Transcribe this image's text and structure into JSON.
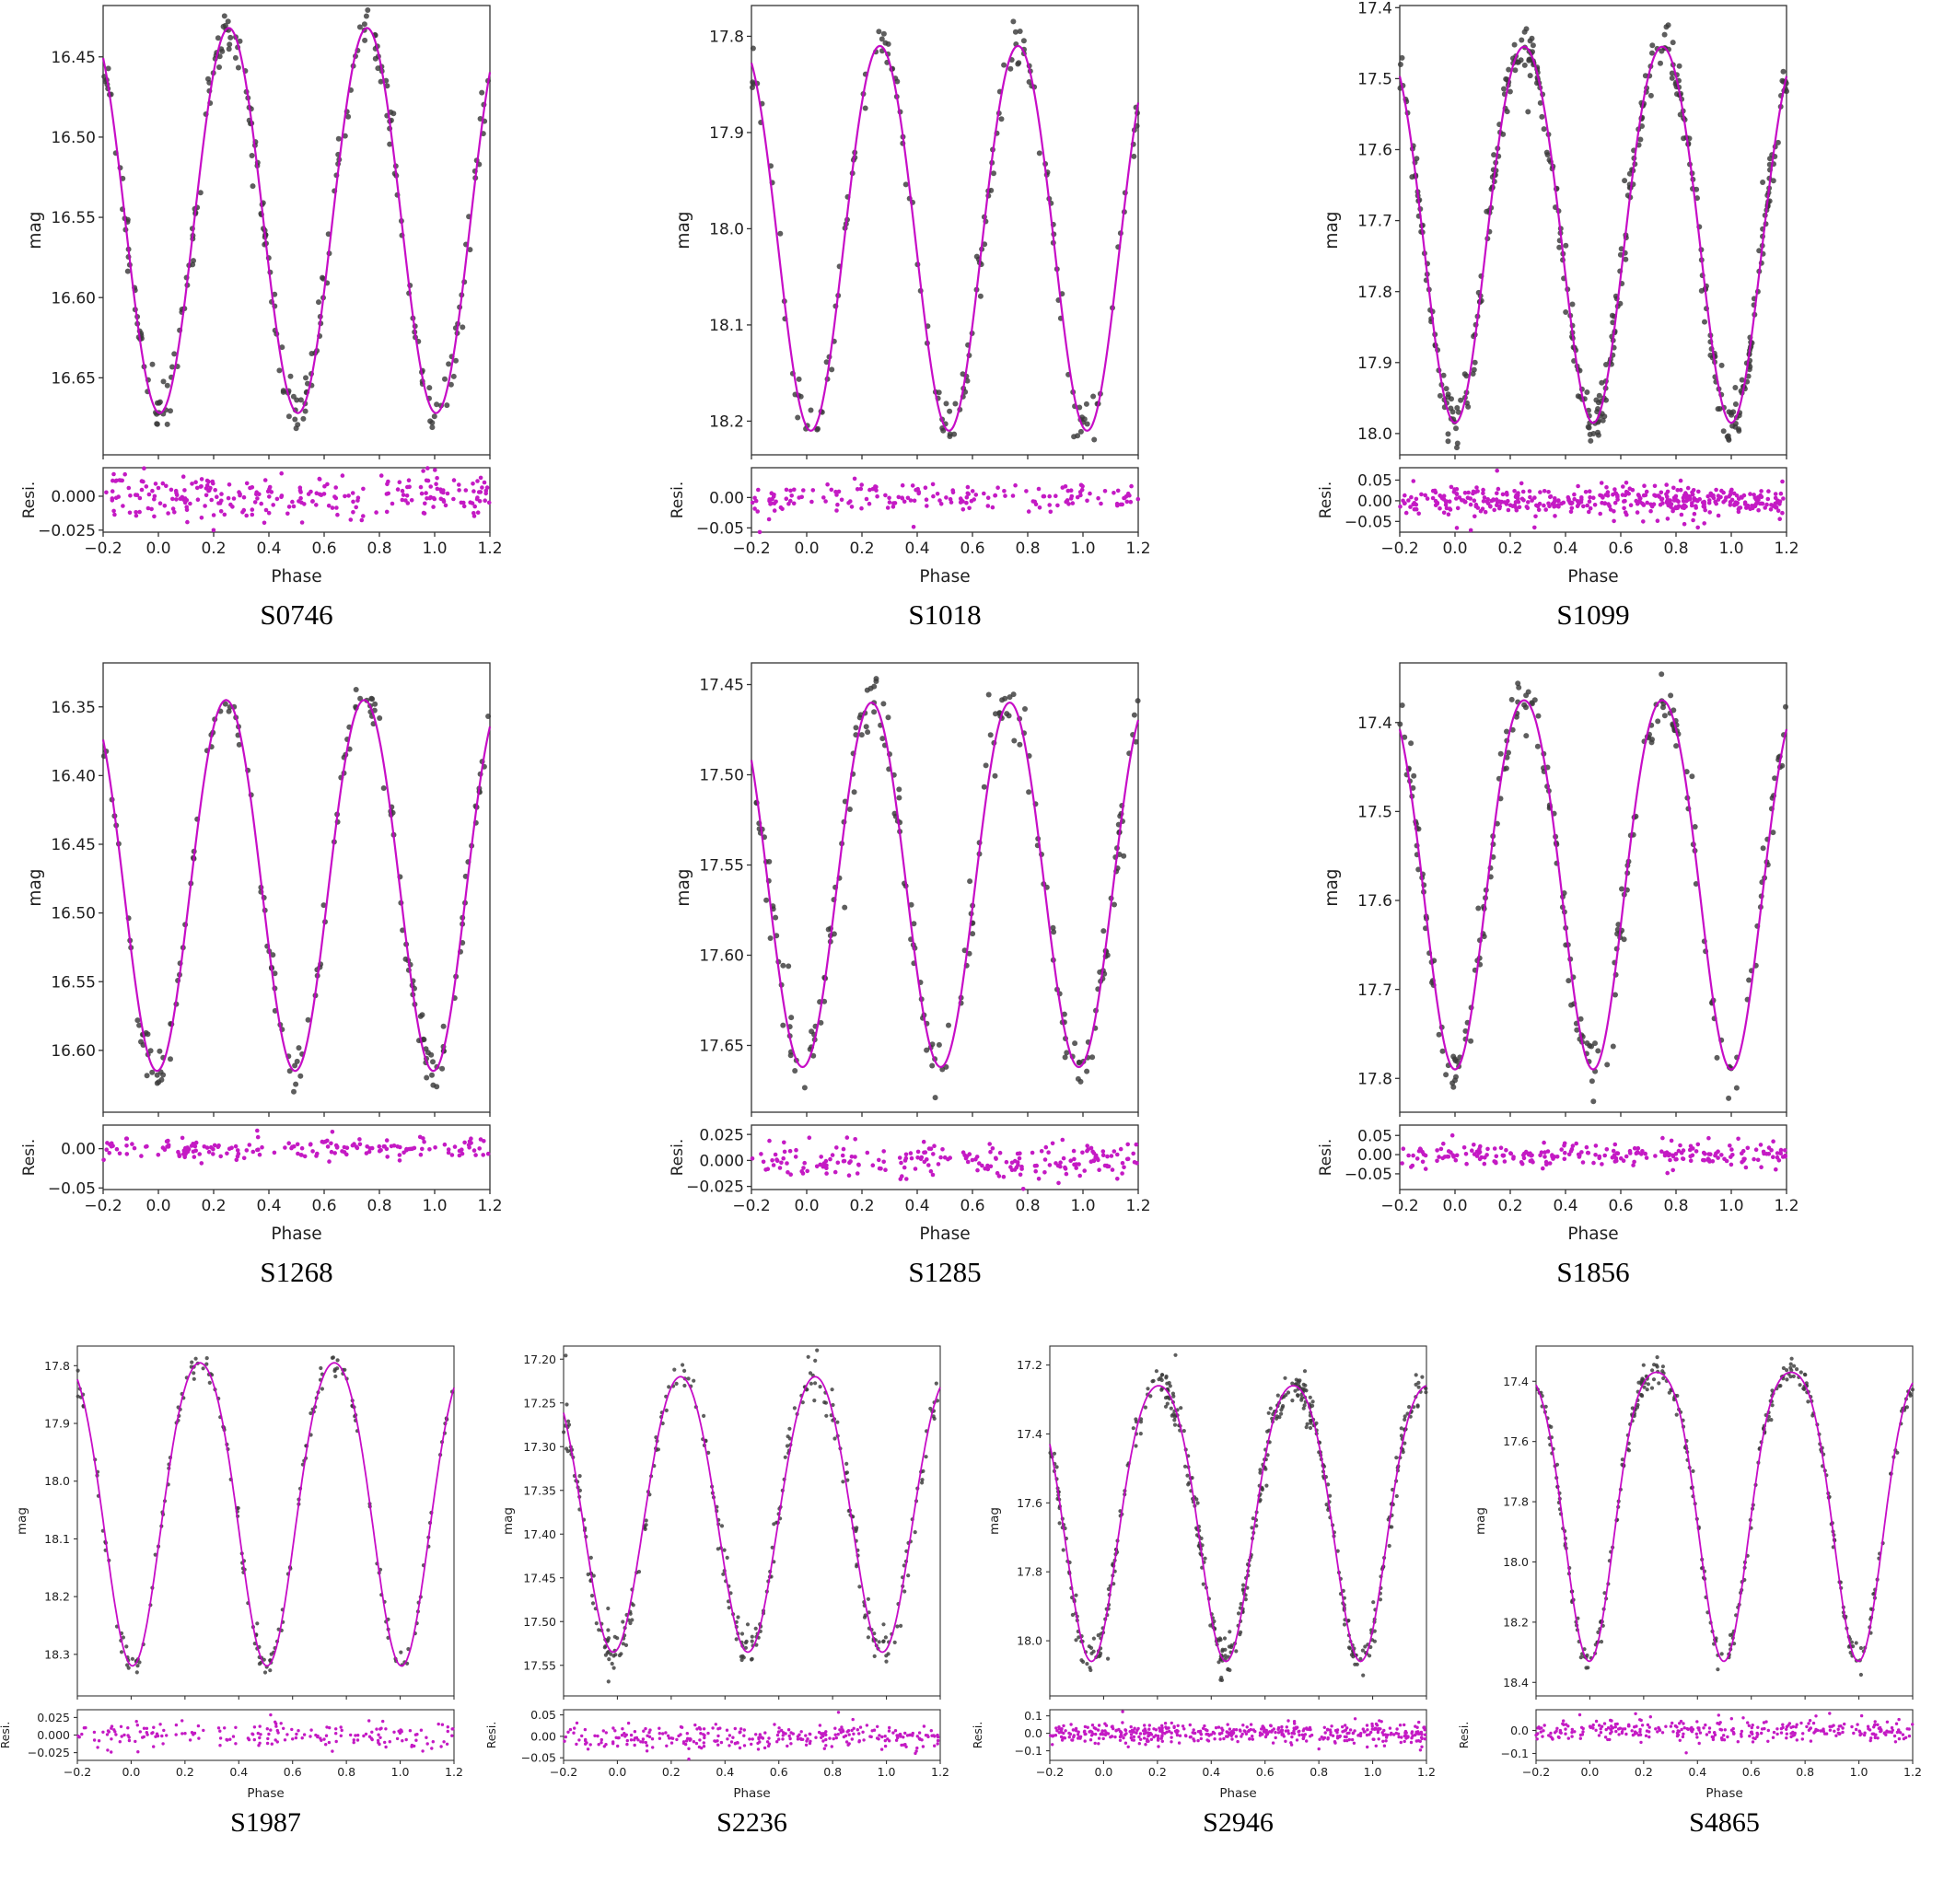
{
  "chart_data": {
    "type": "scatter",
    "description": "Grid of 10 phase-folded light curves of variable stars; each panel shows mag vs Phase with dark data points, a magenta sinusoidal fit, and a residual strip below.",
    "layout": {
      "rows": [
        [
          "S0746",
          "S1018",
          "S1099"
        ],
        [
          "S1268",
          "S1285",
          "S1856"
        ],
        [
          "S1987",
          "S2236",
          "S2946",
          "S4865"
        ]
      ],
      "grid": false,
      "legend": "none"
    },
    "shared": {
      "xlabel": "Phase",
      "ylabel_main": "mag",
      "ylabel_resid": "Resi.",
      "xlim": [
        -0.2,
        1.2
      ],
      "x_tick_values": [
        -0.2,
        0.0,
        0.2,
        0.4,
        0.6,
        0.8,
        1.0,
        1.2
      ],
      "x_tick_labels": [
        "−0.2",
        "0.0",
        "0.2",
        "0.4",
        "0.6",
        "0.8",
        "1.0",
        "1.2"
      ],
      "fit_color": "#c400c4",
      "resid_point_color": "#c41ac4",
      "point_color": "#3a3a3a",
      "axis_color": "#333333"
    },
    "panels": [
      {
        "id": "S0746",
        "y_tick_labels": [
          "16.45",
          "16.50",
          "16.55",
          "16.60",
          "16.65"
        ],
        "y_tick_values": [
          16.45,
          16.5,
          16.55,
          16.6,
          16.65
        ],
        "ylim": [
          16.418,
          16.698
        ],
        "fit": {
          "mag_brightest": 16.432,
          "mag_faintest": 16.672,
          "min_at_phase": 0.005,
          "period_in_phase": 0.5,
          "sharpness": 0.0
        },
        "points": {
          "n": 260,
          "noise_mag": 0.008,
          "seed": 11
        },
        "residual": {
          "tick_labels": [
            "0.000",
            "−0.025"
          ],
          "tick_values": [
            0.0,
            -0.025
          ],
          "ylim": [
            0.021,
            -0.0265
          ],
          "seed": 111
        }
      },
      {
        "id": "S1018",
        "y_tick_labels": [
          "17.8",
          "17.9",
          "18.0",
          "18.1",
          "18.2"
        ],
        "y_tick_values": [
          17.8,
          17.9,
          18.0,
          18.1,
          18.2
        ],
        "ylim": [
          17.768,
          18.235
        ],
        "fit": {
          "mag_brightest": 17.81,
          "mag_faintest": 18.21,
          "min_at_phase": 0.015,
          "period_in_phase": 0.5,
          "sharpness": 0.02
        },
        "points": {
          "n": 170,
          "noise_mag": 0.013,
          "seed": 22
        },
        "residual": {
          "tick_labels": [
            "0.00",
            "−0.05"
          ],
          "tick_values": [
            0.0,
            -0.05
          ],
          "ylim": [
            0.049,
            -0.057
          ],
          "seed": 222
        }
      },
      {
        "id": "S1099",
        "y_tick_labels": [
          "17.4",
          "17.5",
          "17.6",
          "17.7",
          "17.8",
          "17.9",
          "18.0"
        ],
        "y_tick_values": [
          17.4,
          17.5,
          17.6,
          17.7,
          17.8,
          17.9,
          18.0
        ],
        "ylim": [
          17.397,
          18.03
        ],
        "fit": {
          "mag_brightest": 17.455,
          "mag_faintest": 17.985,
          "min_at_phase": 0.0,
          "period_in_phase": 0.5,
          "sharpness": 0.05
        },
        "points": {
          "n": 430,
          "noise_mag": 0.018,
          "seed": 33
        },
        "residual": {
          "tick_labels": [
            "0.05",
            "0.00",
            "−0.05"
          ],
          "tick_values": [
            0.05,
            0.0,
            -0.05
          ],
          "ylim": [
            0.08,
            -0.076
          ],
          "seed": 333
        }
      },
      {
        "id": "S1268",
        "y_tick_labels": [
          "16.35",
          "16.40",
          "16.45",
          "16.50",
          "16.55",
          "16.60"
        ],
        "y_tick_values": [
          16.35,
          16.4,
          16.45,
          16.5,
          16.55,
          16.6
        ],
        "ylim": [
          16.318,
          16.645
        ],
        "fit": {
          "mag_brightest": 16.345,
          "mag_faintest": 16.615,
          "min_at_phase": -0.005,
          "period_in_phase": 0.5,
          "sharpness": 0.02
        },
        "points": {
          "n": 175,
          "noise_mag": 0.007,
          "seed": 44
        },
        "residual": {
          "tick_labels": [
            "0.00",
            "−0.05"
          ],
          "tick_values": [
            0.0,
            -0.05
          ],
          "ylim": [
            0.03,
            -0.052
          ],
          "seed": 444
        }
      },
      {
        "id": "S1285",
        "y_tick_labels": [
          "17.45",
          "17.50",
          "17.55",
          "17.60",
          "17.65"
        ],
        "y_tick_values": [
          17.45,
          17.5,
          17.55,
          17.6,
          17.65
        ],
        "ylim": [
          17.438,
          17.687
        ],
        "fit": {
          "mag_brightest": 17.46,
          "mag_faintest": 17.662,
          "min_at_phase": -0.015,
          "period_in_phase": 0.5,
          "sharpness": 0.0
        },
        "points": {
          "n": 210,
          "noise_mag": 0.009,
          "seed": 55
        },
        "residual": {
          "tick_labels": [
            "0.025",
            "0.000",
            "−0.025"
          ],
          "tick_values": [
            0.025,
            0.0,
            -0.025
          ],
          "ylim": [
            0.034,
            -0.028
          ],
          "seed": 555
        }
      },
      {
        "id": "S1856",
        "y_tick_labels": [
          "17.4",
          "17.5",
          "17.6",
          "17.7",
          "17.8"
        ],
        "y_tick_values": [
          17.4,
          17.5,
          17.6,
          17.7,
          17.8
        ],
        "ylim": [
          17.333,
          17.838
        ],
        "fit": {
          "mag_brightest": 17.375,
          "mag_faintest": 17.79,
          "min_at_phase": 0.0,
          "period_in_phase": 0.5,
          "sharpness": 0.05
        },
        "points": {
          "n": 235,
          "noise_mag": 0.016,
          "seed": 66
        },
        "residual": {
          "tick_labels": [
            "0.05",
            "0.00",
            "−0.05"
          ],
          "tick_values": [
            0.05,
            0.0,
            -0.05
          ],
          "ylim": [
            0.077,
            -0.091
          ],
          "seed": 666
        }
      },
      {
        "id": "S1987",
        "y_tick_labels": [
          "17.8",
          "17.9",
          "18.0",
          "18.1",
          "18.2",
          "18.3"
        ],
        "y_tick_values": [
          17.8,
          17.9,
          18.0,
          18.1,
          18.2,
          18.3
        ],
        "ylim": [
          17.766,
          18.372
        ],
        "fit": {
          "mag_brightest": 17.795,
          "mag_faintest": 18.32,
          "min_at_phase": 0.005,
          "period_in_phase": 0.5,
          "sharpness": 0.08
        },
        "points": {
          "n": 190,
          "noise_mag": 0.01,
          "seed": 77
        },
        "residual": {
          "tick_labels": [
            "0.025",
            "0.000",
            "−0.025"
          ],
          "tick_values": [
            0.025,
            0.0,
            -0.025
          ],
          "ylim": [
            0.036,
            -0.036
          ],
          "seed": 777
        }
      },
      {
        "id": "S2236",
        "y_tick_labels": [
          "17.20",
          "17.25",
          "17.30",
          "17.35",
          "17.40",
          "17.45",
          "17.50",
          "17.55"
        ],
        "y_tick_values": [
          17.2,
          17.25,
          17.3,
          17.35,
          17.4,
          17.45,
          17.5,
          17.55
        ],
        "ylim": [
          17.185,
          17.585
        ],
        "fit": {
          "mag_brightest": 17.22,
          "mag_faintest": 17.535,
          "min_at_phase": -0.015,
          "period_in_phase": 0.5,
          "sharpness": 0.05
        },
        "points": {
          "n": 300,
          "noise_mag": 0.014,
          "seed": 88
        },
        "residual": {
          "tick_labels": [
            "0.05",
            "0.00",
            "−0.05"
          ],
          "tick_values": [
            0.05,
            0.0,
            -0.05
          ],
          "ylim": [
            0.062,
            -0.056
          ],
          "seed": 888
        }
      },
      {
        "id": "S2946",
        "y_tick_labels": [
          "17.2",
          "17.4",
          "17.6",
          "17.8",
          "18.0"
        ],
        "y_tick_values": [
          17.2,
          17.4,
          17.6,
          17.8,
          18.0
        ],
        "ylim": [
          17.145,
          18.16
        ],
        "fit": {
          "mag_brightest": 17.26,
          "mag_faintest": 18.06,
          "min_at_phase": -0.045,
          "period_in_phase": 0.5,
          "sharpness": 0.12
        },
        "points": {
          "n": 480,
          "noise_mag": 0.03,
          "seed": 99
        },
        "residual": {
          "tick_labels": [
            "0.1",
            "0.0",
            "−0.1"
          ],
          "tick_values": [
            0.1,
            0.0,
            -0.1
          ],
          "ylim": [
            0.135,
            -0.155
          ],
          "seed": 999
        }
      },
      {
        "id": "S4865",
        "y_tick_labels": [
          "17.4",
          "17.6",
          "17.8",
          "18.0",
          "18.2",
          "18.4"
        ],
        "y_tick_values": [
          17.4,
          17.6,
          17.8,
          18.0,
          18.2,
          18.4
        ],
        "ylim": [
          17.283,
          18.445
        ],
        "fit": {
          "mag_brightest": 17.37,
          "mag_faintest": 18.33,
          "min_at_phase": -0.002,
          "period_in_phase": 0.5,
          "sharpness": 0.16
        },
        "points": {
          "n": 330,
          "noise_mag": 0.022,
          "seed": 101
        },
        "residual": {
          "tick_labels": [
            "0.0",
            "−0.1"
          ],
          "tick_values": [
            0.0,
            -0.1
          ],
          "ylim": [
            0.09,
            -0.13
          ],
          "seed": 1010
        }
      }
    ]
  }
}
